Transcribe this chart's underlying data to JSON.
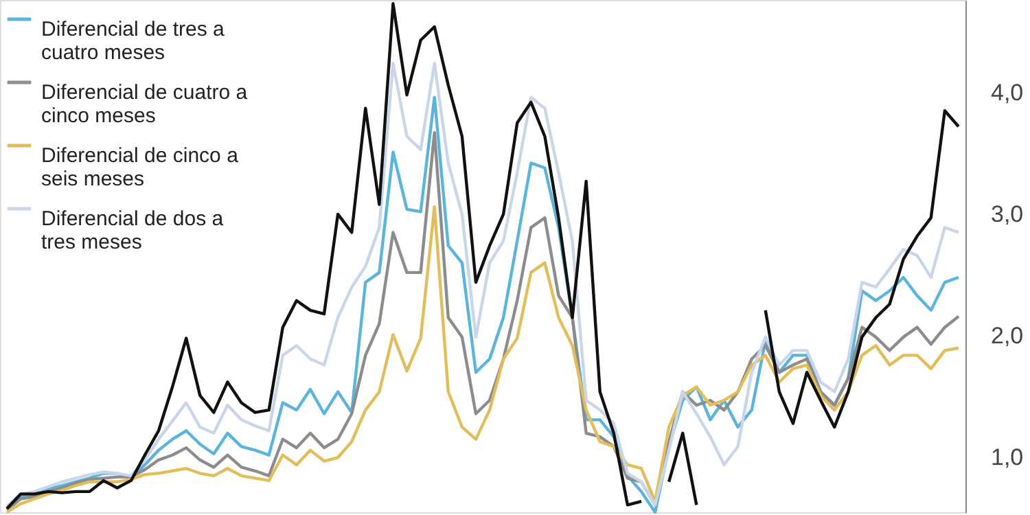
{
  "chart_data": {
    "type": "line",
    "categories": [
      null,
      null,
      null,
      null,
      null,
      null,
      null,
      null,
      null,
      null,
      null,
      null,
      null,
      null,
      null,
      null,
      null,
      null,
      null,
      null,
      null,
      null,
      null,
      null,
      null,
      null,
      null,
      null,
      null,
      null,
      null,
      null,
      null,
      null,
      null,
      null,
      null,
      null,
      null,
      null,
      null,
      null,
      null,
      null,
      null,
      null,
      null,
      null,
      null,
      null,
      null,
      null,
      null,
      null,
      null,
      null,
      null,
      null,
      null,
      null,
      null,
      null,
      null,
      null,
      null,
      null,
      null,
      null,
      null,
      null
    ],
    "series": [
      {
        "color": "#111111",
        "values": [
          0.58,
          0.7,
          0.7,
          0.72,
          0.71,
          0.72,
          0.72,
          0.81,
          0.75,
          0.81,
          1.02,
          1.22,
          1.58,
          1.98,
          1.51,
          1.37,
          1.62,
          1.45,
          1.37,
          1.39,
          2.07,
          2.29,
          2.21,
          2.18,
          3.0,
          2.85,
          3.87,
          3.08,
          4.73,
          3.98,
          4.43,
          4.54,
          4.06,
          3.64,
          2.44,
          2.74,
          3.0,
          3.75,
          3.92,
          3.64,
          2.97,
          2.15,
          3.27,
          1.54,
          1.2,
          0.61,
          0.64,
          null,
          0.8,
          1.2,
          0.61,
          null,
          null,
          null,
          null,
          2.21,
          1.54,
          1.28,
          1.7,
          1.47,
          1.25,
          1.54,
          1.99,
          2.15,
          2.26,
          2.63,
          2.82,
          2.97,
          3.85,
          3.72
        ]
      },
      {
        "name": "Diferencial de tres a cuatro meses",
        "color": "#5ab4dc",
        "values": [
          0.58,
          0.68,
          0.7,
          0.74,
          0.77,
          0.8,
          0.83,
          0.87,
          0.87,
          0.83,
          0.94,
          1.06,
          1.15,
          1.22,
          1.11,
          1.03,
          1.2,
          1.09,
          1.06,
          1.02,
          1.45,
          1.39,
          1.56,
          1.36,
          1.54,
          1.37,
          2.44,
          2.52,
          3.51,
          3.04,
          3.02,
          3.96,
          2.74,
          2.6,
          1.7,
          1.81,
          2.15,
          2.78,
          3.42,
          3.38,
          2.89,
          2.15,
          1.31,
          1.31,
          1.17,
          0.85,
          0.72,
          0.55,
          1.09,
          1.47,
          1.58,
          1.31,
          1.47,
          1.25,
          1.39,
          1.96,
          1.7,
          1.84,
          1.84,
          1.54,
          1.43,
          1.65,
          2.37,
          2.29,
          2.37,
          2.48,
          2.33,
          2.21,
          2.44,
          2.48
        ]
      },
      {
        "name": "Diferencial de cuatro a cinco meses",
        "color": "#8c8c8c",
        "values": [
          0.57,
          0.66,
          0.68,
          0.72,
          0.75,
          0.79,
          0.82,
          0.83,
          0.84,
          0.84,
          0.9,
          0.98,
          1.02,
          1.08,
          0.98,
          0.92,
          1.02,
          0.92,
          0.89,
          0.85,
          1.15,
          1.08,
          1.2,
          1.08,
          1.15,
          1.36,
          1.84,
          2.1,
          2.85,
          2.52,
          2.52,
          3.67,
          2.15,
          1.99,
          1.36,
          1.47,
          1.81,
          2.29,
          2.89,
          2.97,
          2.33,
          2.15,
          1.2,
          1.17,
          1.09,
          0.83,
          0.8,
          0.61,
          1.13,
          1.54,
          1.43,
          1.47,
          1.39,
          1.54,
          1.81,
          1.92,
          1.7,
          1.76,
          1.81,
          1.54,
          1.43,
          1.65,
          2.07,
          1.99,
          1.88,
          1.99,
          2.07,
          1.93,
          2.07,
          2.16
        ]
      },
      {
        "name": "Diferencial de cinco a seis meses",
        "color": "#e3bd5a",
        "values": [
          0.55,
          0.62,
          0.66,
          0.7,
          0.73,
          0.77,
          0.8,
          0.8,
          0.8,
          0.82,
          0.86,
          0.87,
          0.89,
          0.91,
          0.87,
          0.85,
          0.91,
          0.85,
          0.83,
          0.81,
          1.02,
          0.94,
          1.06,
          0.97,
          1.0,
          1.13,
          1.39,
          1.54,
          2.01,
          1.71,
          1.98,
          3.06,
          1.54,
          1.25,
          1.15,
          1.39,
          1.81,
          1.98,
          2.52,
          2.6,
          2.15,
          1.92,
          1.39,
          1.13,
          1.09,
          0.94,
          0.91,
          0.64,
          1.25,
          1.51,
          1.58,
          1.43,
          1.47,
          1.54,
          1.76,
          1.84,
          1.62,
          1.73,
          1.76,
          1.51,
          1.39,
          1.54,
          1.84,
          1.92,
          1.76,
          1.84,
          1.84,
          1.73,
          1.88,
          1.9
        ]
      },
      {
        "name": "Diferencial de dos a tres meses",
        "color": "#c9d5e8",
        "values": [
          0.6,
          0.7,
          0.72,
          0.76,
          0.8,
          0.83,
          0.86,
          0.88,
          0.87,
          0.85,
          0.98,
          1.15,
          1.3,
          1.45,
          1.25,
          1.2,
          1.43,
          1.31,
          1.26,
          1.22,
          1.84,
          1.92,
          1.81,
          1.76,
          2.15,
          2.4,
          2.57,
          2.89,
          4.24,
          3.64,
          3.53,
          4.24,
          3.42,
          3.0,
          1.99,
          2.6,
          2.78,
          3.34,
          3.96,
          3.87,
          3.34,
          2.78,
          1.47,
          1.39,
          1.28,
          0.87,
          0.8,
          0.61,
          1.06,
          1.54,
          1.36,
          1.17,
          0.94,
          1.09,
          1.7,
          1.99,
          1.76,
          1.88,
          1.88,
          1.62,
          1.54,
          1.81,
          2.44,
          2.4,
          2.55,
          2.71,
          2.66,
          2.48,
          2.89,
          2.85
        ]
      }
    ],
    "ylim": [
      0.55,
      4.76
    ],
    "yticks": [
      {
        "value": 1,
        "label": "1,0"
      },
      {
        "value": 2,
        "label": "2,0"
      },
      {
        "value": 3,
        "label": "3,0"
      },
      {
        "value": 4,
        "label": "4,0"
      }
    ],
    "legend": "top left",
    "line_style": "solid"
  }
}
